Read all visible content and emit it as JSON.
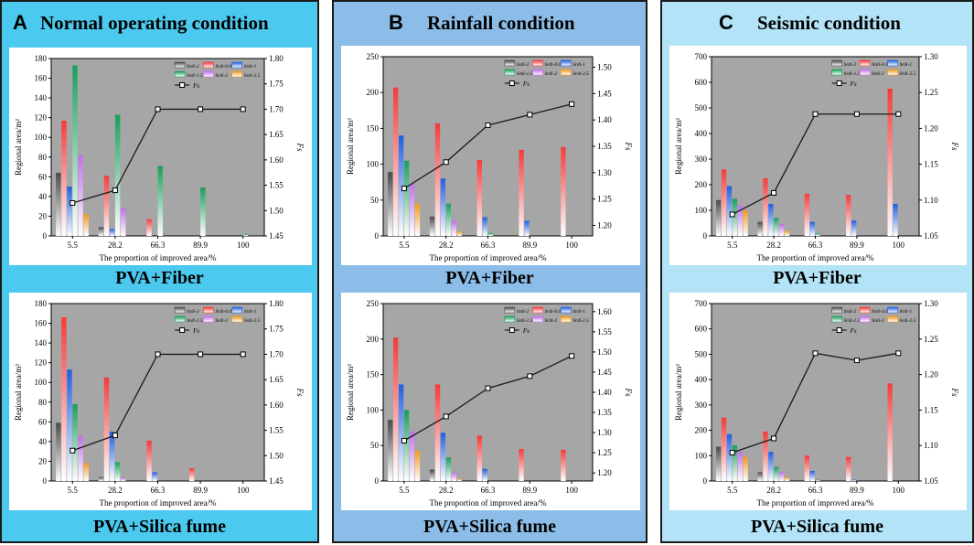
{
  "colors": {
    "panel_bg": [
      "#4cc9ee",
      "#8cbde9",
      "#b2e3f6"
    ],
    "plot_bg": "#a6a6a6",
    "series": [
      "#4a4a4a",
      "#f53a3a",
      "#1f5fe0",
      "#17a05a",
      "#c070e8",
      "#f09a1e"
    ],
    "line": "#1a1a1a"
  },
  "series_labels": [
    "Srdi-2",
    "Srdi-0.05",
    "Srdi-1",
    "Srdi-1.5",
    "Srdi-2",
    "Srdi-2.5"
  ],
  "fs_label": "Fs",
  "panels": [
    {
      "letter": "A",
      "title": "Normal operating condition",
      "sub_labels": [
        "PVA+Fiber",
        "PVA+Silica fume"
      ]
    },
    {
      "letter": "B",
      "title": "Rainfall condition",
      "sub_labels": [
        "PVA+Fiber",
        "PVA+Silica fume"
      ]
    },
    {
      "letter": "C",
      "title": "Seismic condition",
      "sub_labels": [
        "PVA+Fiber",
        "PVA+Silica fume"
      ]
    }
  ],
  "chart_data": [
    {
      "type": "bar",
      "id": "A1",
      "title": "PVA+Fiber",
      "xlabel": "The proportion of improved area/%",
      "ylabel": "Regional area/m²",
      "y2label": "Fs",
      "categories": [
        "5.5",
        "28.2",
        "66.3",
        "89.9",
        "100"
      ],
      "ylim": [
        0,
        180
      ],
      "yticks": [
        0,
        20,
        40,
        60,
        80,
        100,
        120,
        140,
        160,
        180
      ],
      "y2lim": [
        1.45,
        1.8
      ],
      "y2ticks": [
        "1.45",
        "1.50",
        "1.55",
        "1.60",
        "1.65",
        "1.70",
        "1.75",
        "1.80"
      ],
      "series": [
        {
          "name": "Srdi-2",
          "values": [
            64,
            9,
            0,
            0,
            0
          ]
        },
        {
          "name": "Srdi-0.05",
          "values": [
            117,
            61,
            17,
            0,
            0
          ]
        },
        {
          "name": "Srdi-1",
          "values": [
            50,
            7,
            0,
            0,
            0
          ]
        },
        {
          "name": "Srdi-1.5",
          "values": [
            173,
            123,
            71,
            49,
            2
          ]
        },
        {
          "name": "Srdi-2",
          "values": [
            82,
            28,
            0,
            0,
            0
          ]
        },
        {
          "name": "Srdi-2.5",
          "values": [
            22,
            0,
            0,
            0,
            0
          ]
        }
      ],
      "fs": [
        1.515,
        1.54,
        1.7,
        1.7,
        1.7
      ]
    },
    {
      "type": "bar",
      "id": "A2",
      "title": "PVA+Silica fume",
      "xlabel": "The proportion of improved area/%",
      "ylabel": "Regional area/m²",
      "y2label": "Fs",
      "categories": [
        "5.5",
        "28.2",
        "66.3",
        "89.9",
        "100"
      ],
      "ylim": [
        0,
        180
      ],
      "yticks": [
        0,
        20,
        40,
        60,
        80,
        100,
        120,
        140,
        160,
        180
      ],
      "y2lim": [
        1.45,
        1.8
      ],
      "y2ticks": [
        "1.45",
        "1.50",
        "1.55",
        "1.60",
        "1.65",
        "1.70",
        "1.75",
        "1.80"
      ],
      "series": [
        {
          "name": "Srdi-2",
          "values": [
            59,
            4,
            0,
            0,
            0
          ]
        },
        {
          "name": "Srdi-0.05",
          "values": [
            166,
            105,
            41,
            13,
            0
          ]
        },
        {
          "name": "Srdi-1",
          "values": [
            113,
            50,
            9,
            0,
            0
          ]
        },
        {
          "name": "Srdi-1.5",
          "values": [
            78,
            19,
            0,
            0,
            0
          ]
        },
        {
          "name": "Srdi-2",
          "values": [
            46,
            3,
            0,
            0,
            0
          ]
        },
        {
          "name": "Srdi-2.5",
          "values": [
            18,
            0,
            0,
            0,
            0
          ]
        }
      ],
      "fs": [
        1.51,
        1.54,
        1.7,
        1.7,
        1.7
      ]
    },
    {
      "type": "bar",
      "id": "B1",
      "title": "PVA+Fiber",
      "xlabel": "The proportion of improved area/%",
      "ylabel": "Regional area/m²",
      "y2label": "Fs",
      "categories": [
        "5.5",
        "28.2",
        "66.3",
        "89.9",
        "100"
      ],
      "ylim": [
        0,
        250
      ],
      "yticks": [
        0,
        50,
        100,
        150,
        200,
        250
      ],
      "y2lim": [
        1.18,
        1.52
      ],
      "y2ticks": [
        "1.20",
        "1.25",
        "1.30",
        "1.35",
        "1.40",
        "1.45",
        "1.50"
      ],
      "series": [
        {
          "name": "Srdi-2",
          "values": [
            89,
            27,
            0,
            0,
            0
          ]
        },
        {
          "name": "Srdi-0.05",
          "values": [
            207,
            157,
            106,
            120,
            124
          ]
        },
        {
          "name": "Srdi-1",
          "values": [
            140,
            80,
            26,
            21,
            0
          ]
        },
        {
          "name": "Srdi-1.5",
          "values": [
            105,
            45,
            4,
            0,
            0
          ]
        },
        {
          "name": "Srdi-2",
          "values": [
            73,
            21,
            0,
            0,
            0
          ]
        },
        {
          "name": "Srdi-2.5",
          "values": [
            45,
            6,
            0,
            0,
            0
          ]
        }
      ],
      "fs": [
        1.27,
        1.32,
        1.39,
        1.41,
        1.43
      ]
    },
    {
      "type": "bar",
      "id": "B2",
      "title": "PVA+Silica fume",
      "xlabel": "The proportion of improved area/%",
      "ylabel": "Regional area/m²",
      "y2label": "Fs",
      "categories": [
        "5.5",
        "28.2",
        "66.3",
        "89.9",
        "100"
      ],
      "ylim": [
        0,
        250
      ],
      "yticks": [
        0,
        50,
        100,
        150,
        200,
        250
      ],
      "y2lim": [
        1.18,
        1.62
      ],
      "y2ticks": [
        "1.20",
        "1.25",
        "1.30",
        "1.35",
        "1.40",
        "1.45",
        "1.50",
        "1.55",
        "1.60"
      ],
      "series": [
        {
          "name": "Srdi-2",
          "values": [
            86,
            16,
            0,
            0,
            0
          ]
        },
        {
          "name": "Srdi-0.05",
          "values": [
            202,
            136,
            64,
            45,
            44
          ]
        },
        {
          "name": "Srdi-1",
          "values": [
            136,
            68,
            17,
            0,
            0
          ]
        },
        {
          "name": "Srdi-1.5",
          "values": [
            100,
            33,
            0,
            0,
            0
          ]
        },
        {
          "name": "Srdi-2",
          "values": [
            70,
            12,
            0,
            0,
            0
          ]
        },
        {
          "name": "Srdi-2.5",
          "values": [
            43,
            3,
            0,
            0,
            0
          ]
        }
      ],
      "fs": [
        1.28,
        1.34,
        1.41,
        1.44,
        1.49
      ]
    },
    {
      "type": "bar",
      "id": "C1",
      "title": "PVA+Fiber",
      "xlabel": "The proportion of improved area/%",
      "ylabel": "Regional area/m²",
      "y2label": "Fs",
      "categories": [
        "5.5",
        "28.2",
        "66.3",
        "89.9",
        "100"
      ],
      "ylim": [
        0,
        700
      ],
      "yticks": [
        0,
        100,
        200,
        300,
        400,
        500,
        600,
        700
      ],
      "y2lim": [
        1.05,
        1.3
      ],
      "y2ticks": [
        "1.05",
        "1.10",
        "1.15",
        "1.20",
        "1.25",
        "1.30"
      ],
      "series": [
        {
          "name": "Srdi-2",
          "values": [
            140,
            55,
            0,
            0,
            0
          ]
        },
        {
          "name": "Srdi-0.05",
          "values": [
            260,
            225,
            165,
            160,
            575
          ]
        },
        {
          "name": "Srdi-1",
          "values": [
            195,
            125,
            55,
            60,
            125
          ]
        },
        {
          "name": "Srdi-1.5",
          "values": [
            145,
            70,
            10,
            0,
            0
          ]
        },
        {
          "name": "Srdi-2",
          "values": [
            120,
            45,
            0,
            0,
            0
          ]
        },
        {
          "name": "Srdi-2.5",
          "values": [
            100,
            20,
            0,
            0,
            0
          ]
        }
      ],
      "fs": [
        1.08,
        1.11,
        1.22,
        1.22,
        1.22
      ]
    },
    {
      "type": "bar",
      "id": "C2",
      "title": "PVA+Silica fume",
      "xlabel": "The proportion of improved area/%",
      "ylabel": "Regional area/m²",
      "y2label": "Fs",
      "categories": [
        "5.5",
        "28.2",
        "66.3",
        "89.9",
        "100"
      ],
      "ylim": [
        0,
        700
      ],
      "yticks": [
        0,
        100,
        200,
        300,
        400,
        500,
        600,
        700
      ],
      "y2lim": [
        1.05,
        1.3
      ],
      "y2ticks": [
        "1.05",
        "1.10",
        "1.15",
        "1.20",
        "1.25",
        "1.30"
      ],
      "series": [
        {
          "name": "Srdi-2",
          "values": [
            135,
            35,
            0,
            0,
            0
          ]
        },
        {
          "name": "Srdi-0.05",
          "values": [
            250,
            195,
            100,
            95,
            385
          ]
        },
        {
          "name": "Srdi-1",
          "values": [
            185,
            115,
            40,
            5,
            0
          ]
        },
        {
          "name": "Srdi-1.5",
          "values": [
            140,
            55,
            5,
            0,
            0
          ]
        },
        {
          "name": "Srdi-2",
          "values": [
            115,
            35,
            0,
            0,
            0
          ]
        },
        {
          "name": "Srdi-2.5",
          "values": [
            95,
            15,
            0,
            0,
            0
          ]
        }
      ],
      "fs": [
        1.09,
        1.11,
        1.23,
        1.22,
        1.23
      ]
    }
  ]
}
